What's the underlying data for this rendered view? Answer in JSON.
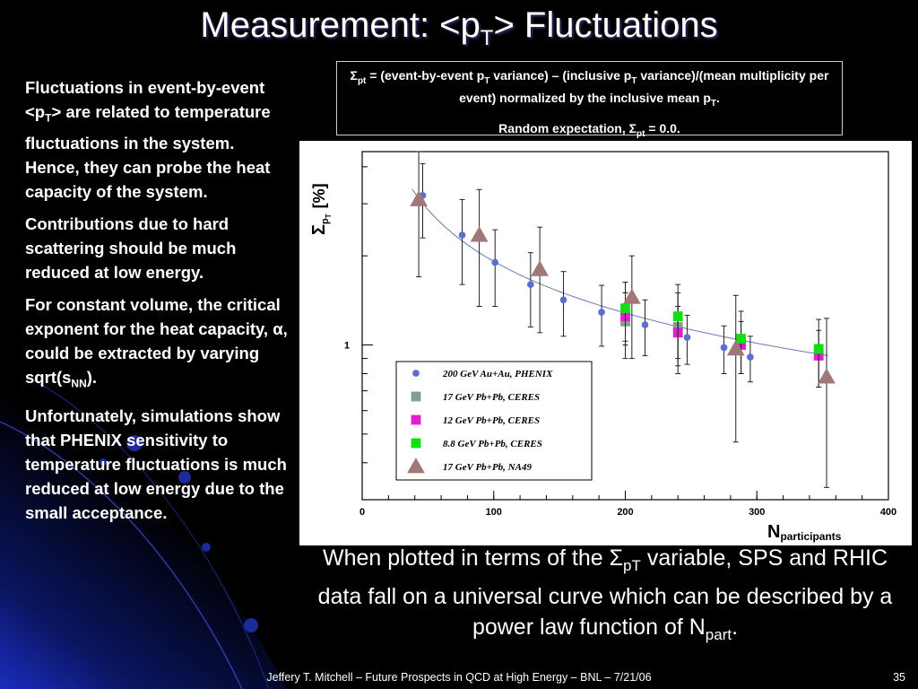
{
  "slide": {
    "title_prefix": "Measurement: <p",
    "title_sub": "T",
    "title_suffix": "> Fluctuations",
    "bullets": [
      {
        "a": "Fluctuations in event-by-event <p",
        "sub": "T",
        "b": "> are related to temperature fluctuations in the system. Hence, they can probe the heat capacity of the system."
      },
      {
        "a": "Contributions due to hard scattering should be much reduced at low energy."
      },
      {
        "a": "For constant volume, the critical exponent for the heat capacity, ",
        "sym": "α",
        "b": ", could be extracted by varying sqrt(s",
        "sub": "NN",
        "c": ")."
      },
      {
        "a": "Unfortunately, simulations show that PHENIX sensitivity to temperature fluctuations is much reduced at low energy due to the small acceptance."
      }
    ],
    "definition": {
      "sigma": "Σ",
      "sigma_sub": "pt",
      "text1": " = (event-by-event p",
      "sub1": "T",
      "text2": " variance) – (inclusive p",
      "sub2": "T",
      "text3": " variance)/(mean multiplicity per event) normalized by the inclusive mean p",
      "sub3": "T",
      "text4": ".",
      "random_text": "Random expectation, ",
      "random_value": " = 0.0."
    },
    "caption": {
      "a": "When plotted in terms of the ",
      "sigma": "Σ",
      "sub": "pT",
      "b": " variable, SPS and RHIC data fall on a universal curve which can be described by a power law function of N",
      "sub2": "part",
      "c": "."
    },
    "footer": "Jeffery T. Mitchell – Future Prospects in QCD at High Energy – BNL – 7/21/06",
    "page_number": "35",
    "colors": {
      "background": "#000000",
      "text": "#ffffff",
      "accent_blue": "#1a2a9a"
    }
  },
  "chart_data": {
    "type": "scatter",
    "xlabel": "N",
    "xlabel_sub": "participants",
    "ylabel": "Σ",
    "ylabel_sub": "p",
    "ylabel_subsub": "T",
    "ylabel_unit": "[%]",
    "xlim": [
      0,
      400
    ],
    "ylim": [
      0.3,
      4.5
    ],
    "y_scale": "log",
    "x_ticks": [
      "0",
      "100",
      "200",
      "300",
      "400"
    ],
    "y_tick_labels": [
      "1"
    ],
    "legend_position": "bottom-left",
    "series": [
      {
        "name": "200 GeV Au+Au, PHENIX",
        "marker": "circle",
        "color": "#5a6fd0",
        "points": [
          {
            "x": 46,
            "y": 3.2,
            "err": 0.9
          },
          {
            "x": 76,
            "y": 2.35,
            "err": 0.75
          },
          {
            "x": 101,
            "y": 1.9,
            "err": 0.55
          },
          {
            "x": 128,
            "y": 1.6,
            "err": 0.45
          },
          {
            "x": 153,
            "y": 1.42,
            "err": 0.35
          },
          {
            "x": 182,
            "y": 1.29,
            "err": 0.3
          },
          {
            "x": 215,
            "y": 1.17,
            "err": 0.25
          },
          {
            "x": 247,
            "y": 1.06,
            "err": 0.2
          },
          {
            "x": 275,
            "y": 0.98,
            "err": 0.18
          },
          {
            "x": 295,
            "y": 0.91,
            "err": 0.16
          }
        ]
      },
      {
        "name": "17 GeV Pb+Pb, CERES",
        "marker": "square",
        "color": "#7fa08a",
        "points": [
          {
            "x": 200,
            "y": 1.2,
            "err": 0.3
          },
          {
            "x": 240,
            "y": 1.15,
            "err": 0.35
          }
        ]
      },
      {
        "name": "12 GeV Pb+Pb, CERES",
        "marker": "square",
        "color": "#e020d0",
        "points": [
          {
            "x": 200,
            "y": 1.25,
            "err": 0.25
          },
          {
            "x": 240,
            "y": 1.1,
            "err": 0.25
          },
          {
            "x": 288,
            "y": 1.0,
            "err": 0.2
          },
          {
            "x": 347,
            "y": 0.92,
            "err": 0.2
          }
        ]
      },
      {
        "name": "8.8 GeV Pb+Pb, CERES",
        "marker": "square",
        "color": "#10e010",
        "points": [
          {
            "x": 200,
            "y": 1.33,
            "err": 0.3
          },
          {
            "x": 240,
            "y": 1.25,
            "err": 0.35
          },
          {
            "x": 288,
            "y": 1.05,
            "err": 0.25
          },
          {
            "x": 347,
            "y": 0.97,
            "err": 0.25
          }
        ]
      },
      {
        "name": "17 GeV Pb+Pb, NA49",
        "marker": "triangle",
        "color": "#a07878",
        "points": [
          {
            "x": 43,
            "y": 3.1,
            "err": 1.4
          },
          {
            "x": 89,
            "y": 2.35,
            "err": 1.0
          },
          {
            "x": 135,
            "y": 1.8,
            "err": 0.7
          },
          {
            "x": 205,
            "y": 1.45,
            "err": 0.55
          },
          {
            "x": 284,
            "y": 0.97,
            "err": 0.5
          },
          {
            "x": 353,
            "y": 0.78,
            "err": 0.45
          }
        ]
      }
    ],
    "fit_curve": {
      "type": "power-law",
      "a": 27.7,
      "b": -0.58
    }
  }
}
